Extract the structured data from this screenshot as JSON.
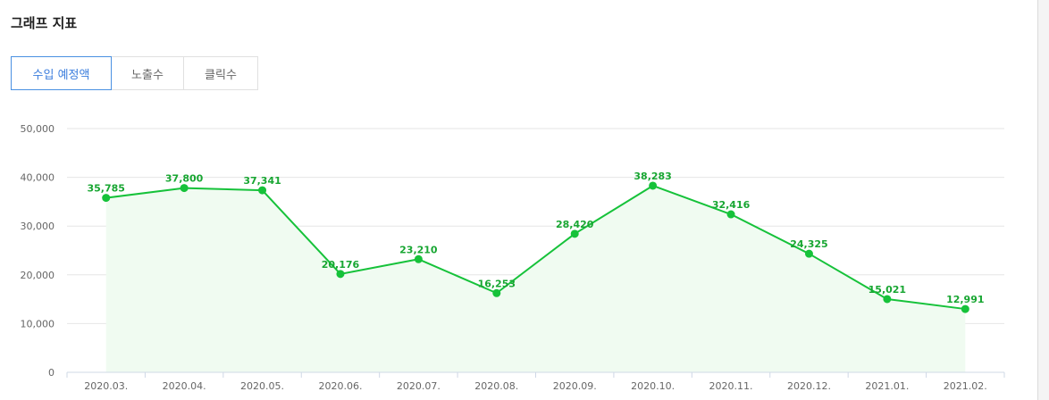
{
  "header": {
    "title": "그래프 지표"
  },
  "tabs": [
    {
      "label": "수입 예정액",
      "active": true
    },
    {
      "label": "노출수",
      "active": false
    },
    {
      "label": "클릭수",
      "active": false
    }
  ],
  "colors": {
    "line": "#16c23a",
    "fill": "#f0fbf1",
    "grid": "#e6e6e6",
    "tab_active": "#3b7ddd"
  },
  "chart_data": {
    "type": "line",
    "categories": [
      "2020.03.",
      "2020.04.",
      "2020.05.",
      "2020.06.",
      "2020.07.",
      "2020.08.",
      "2020.09.",
      "2020.10.",
      "2020.11.",
      "2020.12.",
      "2021.01.",
      "2021.02."
    ],
    "values": [
      35785,
      37800,
      37341,
      20176,
      23210,
      16253,
      28420,
      38283,
      32416,
      24325,
      15021,
      12991
    ],
    "value_labels": [
      "35,785",
      "37,800",
      "37,341",
      "20,176",
      "23,210",
      "16,253",
      "28,420",
      "38,283",
      "32,416",
      "24,325",
      "15,021",
      "12,991"
    ],
    "y_ticks": [
      0,
      10000,
      20000,
      30000,
      40000,
      50000
    ],
    "y_tick_labels": [
      "0",
      "10,000",
      "20,000",
      "30,000",
      "40,000",
      "50,000"
    ],
    "ylim": [
      0,
      50000
    ],
    "grid": true,
    "area_fill": true
  }
}
